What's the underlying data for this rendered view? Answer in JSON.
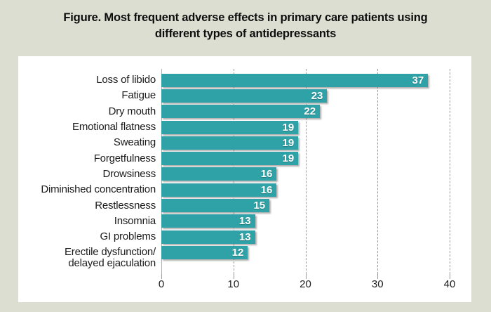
{
  "figure": {
    "title": "Figure. Most frequent adverse effects in primary care patients using\ndifferent types of antidepressants"
  },
  "chart_data": {
    "type": "bar",
    "orientation": "horizontal",
    "title": "Figure. Most frequent adverse effects in primary care patients using different types of antidepressants",
    "categories": [
      "Loss of libido",
      "Fatigue",
      "Dry mouth",
      "Emotional flatness",
      "Sweating",
      "Forgetfulness",
      "Drowsiness",
      "Diminished concentration",
      "Restlessness",
      "Insomnia",
      "GI problems",
      "Erectile dysfunction/\ndelayed ejaculation"
    ],
    "values": [
      37,
      23,
      22,
      19,
      19,
      19,
      16,
      16,
      15,
      13,
      13,
      12
    ],
    "xlabel": "",
    "ylabel": "",
    "xlim": [
      0,
      40
    ],
    "xticks": [
      0,
      10,
      20,
      30,
      40
    ],
    "grid": "vertical-dashed",
    "legend": "none",
    "value_labels": "inside-end"
  },
  "colors": {
    "page_background": "#dcded1",
    "panel_background": "#ffffff",
    "bar": "#2fa2a8",
    "gridline": "#9b9b9b",
    "axis_text": "#1c1c1c",
    "title_text": "#0e0e0e",
    "value_label_text": "#ffffff"
  }
}
